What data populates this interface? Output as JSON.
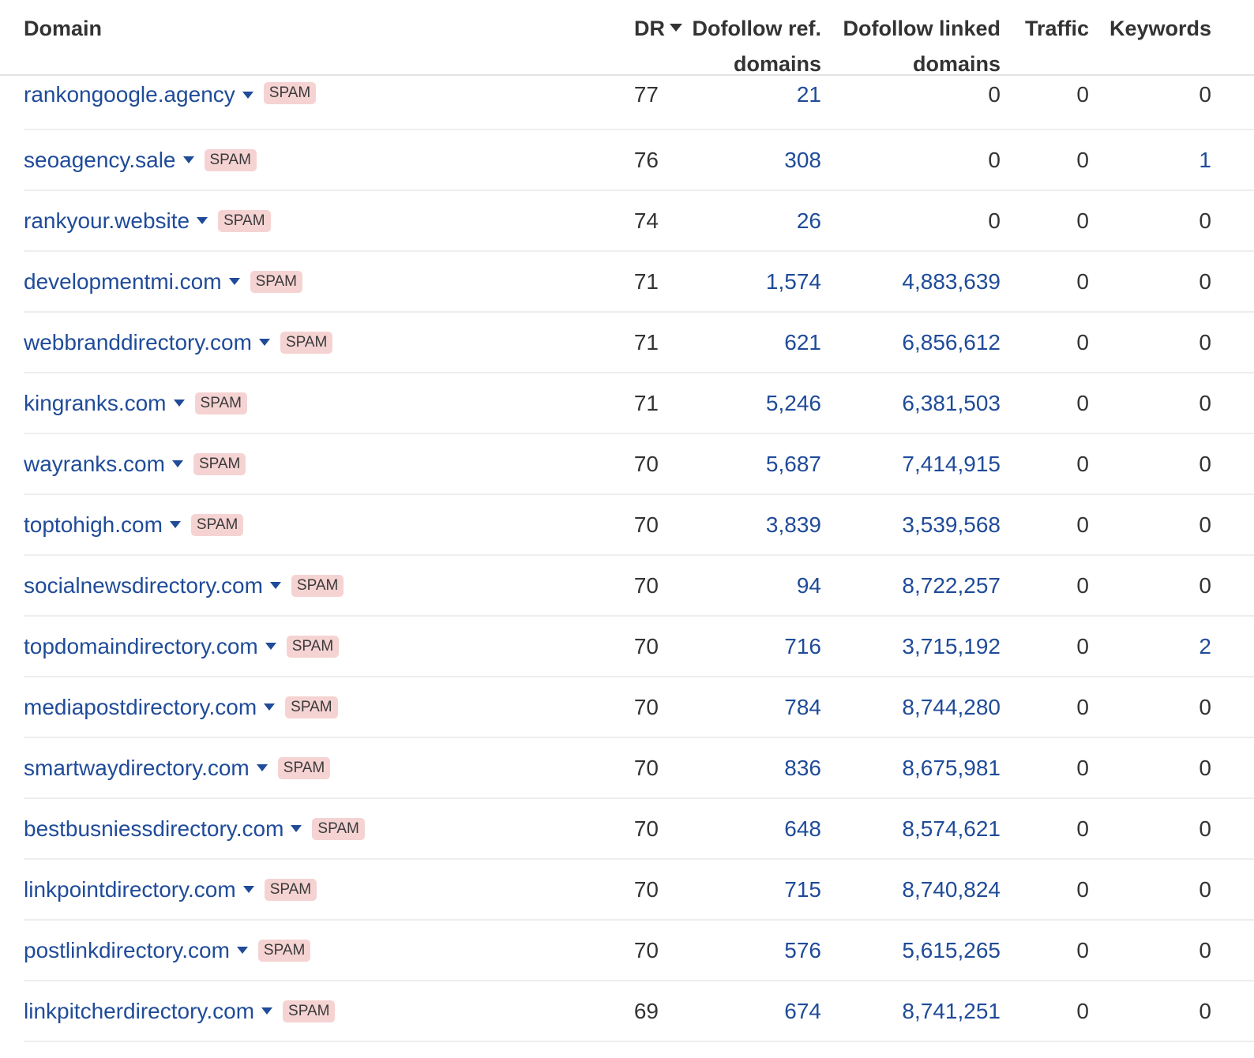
{
  "columns": {
    "domain": "Domain",
    "dr": "DR",
    "dofollow_ref_domains_line1": "Dofollow ref.",
    "dofollow_ref_domains_line2": "domains",
    "dofollow_linked_domains_line1": "Dofollow linked",
    "dofollow_linked_domains_line2": "domains",
    "traffic": "Traffic",
    "keywords": "Keywords"
  },
  "sort": {
    "column": "DR",
    "direction": "descending",
    "icon": "caret-down-icon"
  },
  "colors": {
    "link": "#1f4b99",
    "text": "#333333",
    "spam_badge_bg": "#f6d3d3",
    "row_divider": "#eeeeee"
  },
  "spam_label": "SPAM",
  "rows": [
    {
      "domain": "rankongoogle.agency",
      "dr": "77",
      "ref_domains": "21",
      "linked_domains": "0",
      "traffic": "0",
      "keywords": "0"
    },
    {
      "domain": "seoagency.sale",
      "dr": "76",
      "ref_domains": "308",
      "linked_domains": "0",
      "traffic": "0",
      "keywords": "1"
    },
    {
      "domain": "rankyour.website",
      "dr": "74",
      "ref_domains": "26",
      "linked_domains": "0",
      "traffic": "0",
      "keywords": "0"
    },
    {
      "domain": "developmentmi.com",
      "dr": "71",
      "ref_domains": "1,574",
      "linked_domains": "4,883,639",
      "traffic": "0",
      "keywords": "0"
    },
    {
      "domain": "webbranddirectory.com",
      "dr": "71",
      "ref_domains": "621",
      "linked_domains": "6,856,612",
      "traffic": "0",
      "keywords": "0"
    },
    {
      "domain": "kingranks.com",
      "dr": "71",
      "ref_domains": "5,246",
      "linked_domains": "6,381,503",
      "traffic": "0",
      "keywords": "0"
    },
    {
      "domain": "wayranks.com",
      "dr": "70",
      "ref_domains": "5,687",
      "linked_domains": "7,414,915",
      "traffic": "0",
      "keywords": "0"
    },
    {
      "domain": "toptohigh.com",
      "dr": "70",
      "ref_domains": "3,839",
      "linked_domains": "3,539,568",
      "traffic": "0",
      "keywords": "0"
    },
    {
      "domain": "socialnewsdirectory.com",
      "dr": "70",
      "ref_domains": "94",
      "linked_domains": "8,722,257",
      "traffic": "0",
      "keywords": "0"
    },
    {
      "domain": "topdomaindirectory.com",
      "dr": "70",
      "ref_domains": "716",
      "linked_domains": "3,715,192",
      "traffic": "0",
      "keywords": "2"
    },
    {
      "domain": "mediapostdirectory.com",
      "dr": "70",
      "ref_domains": "784",
      "linked_domains": "8,744,280",
      "traffic": "0",
      "keywords": "0"
    },
    {
      "domain": "smartwaydirectory.com",
      "dr": "70",
      "ref_domains": "836",
      "linked_domains": "8,675,981",
      "traffic": "0",
      "keywords": "0"
    },
    {
      "domain": "bestbusniessdirectory.com",
      "dr": "70",
      "ref_domains": "648",
      "linked_domains": "8,574,621",
      "traffic": "0",
      "keywords": "0"
    },
    {
      "domain": "linkpointdirectory.com",
      "dr": "70",
      "ref_domains": "715",
      "linked_domains": "8,740,824",
      "traffic": "0",
      "keywords": "0"
    },
    {
      "domain": "postlinkdirectory.com",
      "dr": "70",
      "ref_domains": "576",
      "linked_domains": "5,615,265",
      "traffic": "0",
      "keywords": "0"
    },
    {
      "domain": "linkpitcherdirectory.com",
      "dr": "69",
      "ref_domains": "674",
      "linked_domains": "8,741,251",
      "traffic": "0",
      "keywords": "0"
    }
  ]
}
